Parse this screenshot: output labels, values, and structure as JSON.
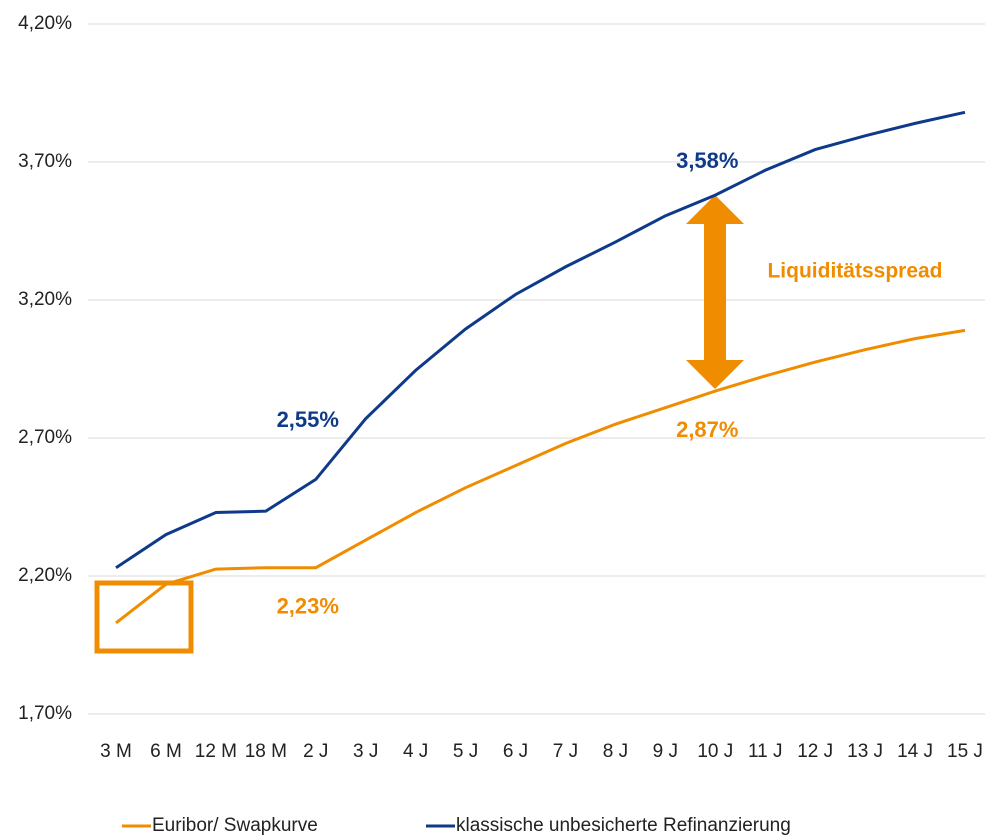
{
  "chart_data": {
    "type": "line",
    "categories": [
      "3 M",
      "6 M",
      "12 M",
      "18 M",
      "2 J",
      "3 J",
      "4 J",
      "5 J",
      "6 J",
      "7 J",
      "8 J",
      "9 J",
      "10 J",
      "11 J",
      "12 J",
      "13 J",
      "14 J",
      "15 J"
    ],
    "series": [
      {
        "name": "Euribor/ Swapkurve",
        "color": "#f08c00",
        "values": [
          2.03,
          2.17,
          2.225,
          2.23,
          2.23,
          2.33,
          2.43,
          2.52,
          2.6,
          2.68,
          2.75,
          2.81,
          2.87,
          2.925,
          2.975,
          3.02,
          3.06,
          3.09
        ],
        "value_labels": [
          null,
          null,
          null,
          null,
          "2,23%",
          null,
          null,
          null,
          null,
          null,
          null,
          null,
          "2,87%",
          null,
          null,
          null,
          null,
          null
        ]
      },
      {
        "name": "klassische unbesicherte Refinanzierung",
        "color": "#0f3a8a",
        "values": [
          2.23,
          2.35,
          2.43,
          2.435,
          2.55,
          2.77,
          2.945,
          3.095,
          3.22,
          3.32,
          3.41,
          3.505,
          3.58,
          3.67,
          3.745,
          3.795,
          3.84,
          3.88
        ],
        "value_labels": [
          null,
          null,
          null,
          null,
          "2,55%",
          null,
          null,
          null,
          null,
          null,
          null,
          null,
          "3,58%",
          null,
          null,
          null,
          null,
          null
        ]
      }
    ],
    "ylim": [
      1.7,
      4.2
    ],
    "yticks": [
      {
        "value": 1.7,
        "label": "1,70%"
      },
      {
        "value": 2.2,
        "label": "2,20%"
      },
      {
        "value": 2.7,
        "label": "2,70%"
      },
      {
        "value": 3.2,
        "label": "3,20%"
      },
      {
        "value": 3.7,
        "label": "3,70%"
      },
      {
        "value": 4.2,
        "label": "4,20%"
      }
    ],
    "grid": true,
    "annotation": "Liquiditätsspread"
  }
}
